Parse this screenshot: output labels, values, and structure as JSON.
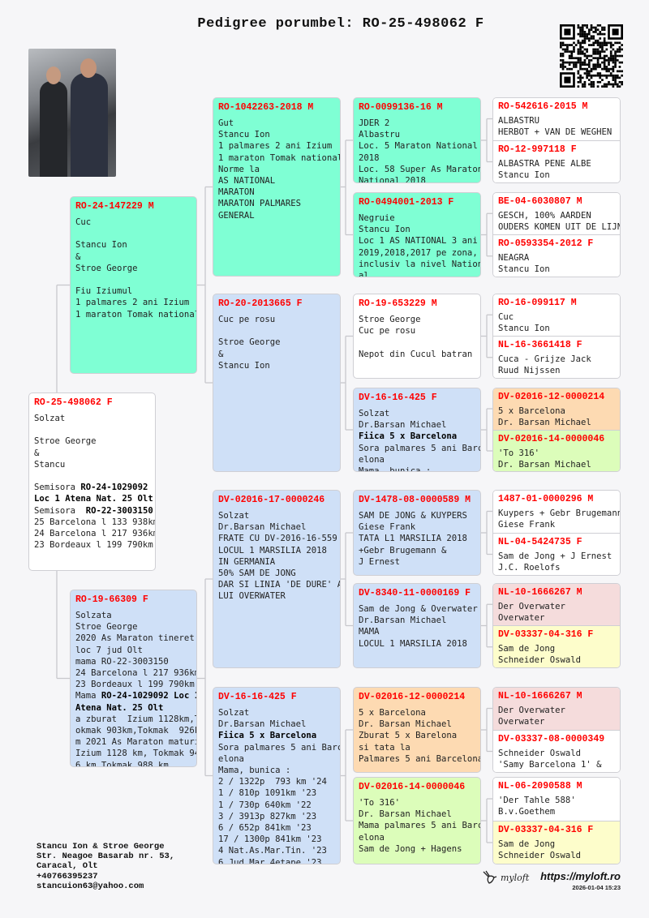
{
  "title": "Pedigree porumbel: RO-25-498062 F",
  "colors": {
    "green": "#7fffd4",
    "blue": "#cfe0f7",
    "white": "#ffffff",
    "orange": "#fddab2",
    "lime": "#dcfdba",
    "pink": "#f5dcdc",
    "yellow": "#fdfdcb",
    "ring": "#ff0000"
  },
  "birds": [
    {
      "ring": "RO-25-498062 F",
      "color": "#ffffff",
      "lines": [
        "Solzat",
        "",
        "Stroe George",
        "&",
        "Stancu",
        "",
        [
          {
            "t": "Semisora "
          },
          {
            "t": "RO-24-1029092",
            "b": true
          }
        ],
        [
          {
            "t": "Loc 1 Atena Nat. 25 Olt",
            "b": true
          }
        ],
        [
          {
            "t": "Semisora  "
          },
          {
            "t": "RO-22-3003150",
            "b": true
          }
        ],
        "25 Barcelona l 133 938km",
        "24 Barcelona l 217 936km",
        "23 Bordeaux l 199 790km"
      ]
    },
    {
      "ring": "RO-24-147229 M",
      "color": "#7fffd4",
      "lines": [
        "Cuc",
        "",
        "Stancu Ion",
        "&",
        "Stroe George",
        "",
        "Fiu Iziumul",
        "1 palmares 2 ani Izium",
        "1 maraton Tomak national"
      ]
    },
    {
      "ring": "RO-19-66309 F",
      "color": "#cfe0f7",
      "lines": [
        "Solzata",
        "Stroe George",
        "2020 As Maraton tineret",
        "loc 7 jud Olt",
        "mama RO-22-3003150",
        "24 Barcelona l 217 936km",
        "23 Bordeaux l 199 790km",
        [
          {
            "t": "Mama "
          },
          {
            "t": "RO-24-1029092 Loc 1",
            "b": true
          }
        ],
        [
          {
            "t": "Atena Nat. 25 Olt",
            "b": true
          }
        ],
        "a zburat  Izium 1128km,T",
        "okmak 903km,Tokmak  926k",
        "m 2021 As Maraton maturi",
        "Izium 1128 km, Tokmak 94",
        "6 km,Tokmak 988 km"
      ]
    },
    {
      "ring": "RO-1042263-2018 M",
      "color": "#7fffd4",
      "lines": [
        "Gut",
        "Stancu Ion",
        "1 palmares 2 ani Izium",
        "1 maraton Tomak national",
        "Norme la",
        "AS NATIONAL",
        "MARATON",
        "MARATON PALMARES",
        "GENERAL"
      ]
    },
    {
      "ring": "RO-20-2013665 F",
      "color": "#cfe0f7",
      "lines": [
        "Cuc pe rosu",
        "",
        "Stroe George",
        "&",
        "Stancu Ion"
      ]
    },
    {
      "ring": "DV-02016-17-0000246",
      "color": "#cfe0f7",
      "lines": [
        "Solzat",
        "Dr.Barsan Michael",
        "FRATE CU DV-2016-16-559",
        "LOCUL 1 MARSILIA 2018",
        "IN GERMANIA",
        "50% SAM DE JONG",
        "DAR SI LINIA 'DE DURE' A",
        "LUI OVERWATER"
      ]
    },
    {
      "ring": "DV-16-16-425 F",
      "color": "#cfe0f7",
      "lines": [
        "Solzat",
        "Dr.Barsan Michael",
        [
          {
            "t": "Fiica 5 x Barcelona",
            "b": true
          }
        ],
        "Sora palmares 5 ani Barc",
        "elona",
        "Mama, bunica :",
        "2 / 1322p  793 km '24",
        "1 / 810p 1091km '23",
        "1 / 730p 640km '22",
        "3 / 3913p 827km '23",
        "6 / 652p 841km '23",
        "17 / 1300p 841km '23",
        "4 Nat.As.Mar.Tin. '23",
        "6 Jud.Mar.4etape '23"
      ]
    },
    {
      "ring": "RO-0099136-16 M",
      "color": "#7fffd4",
      "lines": [
        "JDER 2",
        "Albastru",
        "Loc. 5 Maraton National",
        "2018",
        "Loc. 58 Super As Maraton",
        "National 2018"
      ]
    },
    {
      "ring": "RO-0494001-2013 F",
      "color": "#7fffd4",
      "lines": [
        "Negruie",
        "Stancu Ion",
        "Loc 1 AS NATIONAL 3 ani",
        "2019,2018,2017 pe zona,",
        "inclusiv la nivel Nation",
        "al"
      ]
    },
    {
      "ring": "RO-19-653229 M",
      "color": "#ffffff",
      "lines": [
        "Stroe George",
        "Cuc pe rosu",
        "",
        "Nepot din Cucul batran"
      ]
    },
    {
      "ring": "DV-16-16-425 F",
      "color": "#cfe0f7",
      "lines": [
        "Solzat",
        "Dr.Barsan Michael",
        [
          {
            "t": "Fiica 5 x Barcelona",
            "b": true
          }
        ],
        "Sora palmares 5 ani Barc",
        "elona",
        "Mama, bunica :"
      ]
    },
    {
      "ring": "DV-1478-08-0000589 M",
      "color": "#cfe0f7",
      "lines": [
        "SAM DE JONG & KUYPERS",
        "Giese Frank",
        "TATA L1 MARSILIA 2018",
        "+Gebr Brugemann &",
        "J Ernest"
      ]
    },
    {
      "ring": "DV-8340-11-0000169 F",
      "color": "#cfe0f7",
      "lines": [
        "Sam de Jong & Overwater",
        "Dr.Barsan Michael",
        "MAMA",
        "LOCUL 1 MARSILIA 2018"
      ]
    },
    {
      "ring": "DV-02016-12-0000214",
      "color": "#fddab2",
      "lines": [
        "5 x Barcelona",
        "Dr. Barsan Michael",
        "Zburat 5 x Barelona",
        "si tata la",
        "Palmares 5 ani Barcelona"
      ]
    },
    {
      "ring": "DV-02016-14-0000046",
      "color": "#dcfdba",
      "lines": [
        "'To 316'",
        "Dr. Barsan Michael",
        "Mama palmares 5 ani Barc",
        "elona",
        "Sam de Jong + Hagens"
      ]
    },
    {
      "ring": "RO-542616-2015 M",
      "color": "#ffffff",
      "lines": [
        "ALBASTRU",
        "HERBOT + VAN DE WEGHEN"
      ]
    },
    {
      "ring": "RO-12-997118 F",
      "color": "#ffffff",
      "lines": [
        "ALBASTRA PENE ALBE",
        "Stancu Ion"
      ]
    },
    {
      "ring": "BE-04-6030807 M",
      "color": "#ffffff",
      "lines": [
        "GESCH, 100% AARDEN",
        "OUDERS KOMEN UIT DE LIJN"
      ]
    },
    {
      "ring": "RO-0593354-2012 F",
      "color": "#ffffff",
      "lines": [
        "NEAGRA",
        "Stancu Ion"
      ]
    },
    {
      "ring": "RO-16-099117 M",
      "color": "#ffffff",
      "lines": [
        "Cuc",
        "Stancu Ion"
      ]
    },
    {
      "ring": "NL-16-3661418 F",
      "color": "#ffffff",
      "lines": [
        "Cuca - Grijze Jack",
        "Ruud Nijssen"
      ]
    },
    {
      "ring": "DV-02016-12-0000214",
      "color": "#fddab2",
      "lines": [
        "5 x Barcelona",
        "Dr. Barsan Michael"
      ]
    },
    {
      "ring": "DV-02016-14-0000046",
      "color": "#dcfdba",
      "lines": [
        "'To 316'",
        "Dr. Barsan Michael"
      ]
    },
    {
      "ring": "1487-01-0000296 M",
      "color": "#ffffff",
      "lines": [
        "Kuypers + Gebr Brugemann",
        "Giese Frank"
      ]
    },
    {
      "ring": "NL-04-5424735 F",
      "color": "#ffffff",
      "lines": [
        "Sam de Jong + J Ernest",
        "J.C. Roelofs"
      ]
    },
    {
      "ring": "NL-10-1666267 M",
      "color": "#f5dcdc",
      "lines": [
        "Der Overwater",
        "Overwater"
      ]
    },
    {
      "ring": "DV-03337-04-316 F",
      "color": "#fdfdcb",
      "lines": [
        "Sam de Jong",
        "Schneider Oswald"
      ]
    },
    {
      "ring": "NL-10-1666267 M",
      "color": "#f5dcdc",
      "lines": [
        "Der Overwater",
        "Overwater"
      ]
    },
    {
      "ring": "DV-03337-08-0000349",
      "color": "#ffffff",
      "lines": [
        "Schneider Oswald",
        "'Samy Barcelona 1' &"
      ]
    },
    {
      "ring": "NL-06-2090588 M",
      "color": "#ffffff",
      "lines": [
        "'Der Tahle 588'",
        "B.v.Goethem"
      ]
    },
    {
      "ring": "DV-03337-04-316 F",
      "color": "#fdfdcb",
      "lines": [
        "Sam de Jong",
        "Schneider Oswald"
      ]
    }
  ],
  "contact": {
    "name": "Stancu Ion & Stroe George",
    "street": "Str. Neagoe Basarab nr. 53,",
    "city": "Caracal, Olt",
    "phone": "+40766395237",
    "email": "stancuion63@yahoo.com"
  },
  "footer": {
    "logo": "myloft",
    "url": "https://myloft.ro",
    "date": "2026-01-04 15:23"
  },
  "icons": {
    "qr": "qr-code",
    "photo": "owner-photo",
    "logo": "dove-logo-icon"
  }
}
